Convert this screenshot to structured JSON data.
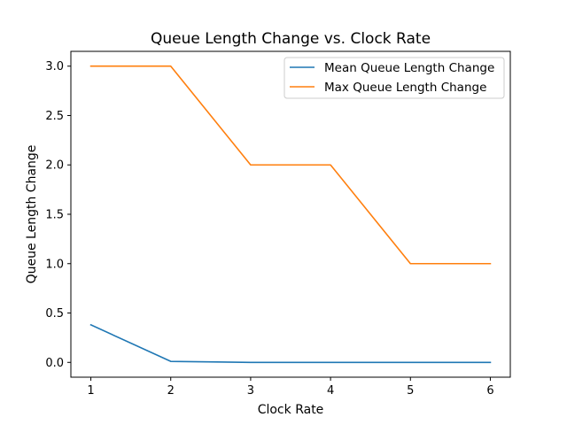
{
  "chart_data": {
    "type": "line",
    "title": "Queue Length Change vs. Clock Rate",
    "xlabel": "Clock Rate",
    "ylabel": "Queue Length Change",
    "x": [
      1,
      2,
      3,
      4,
      5,
      6
    ],
    "xlim": [
      0.75,
      6.25
    ],
    "ylim": [
      -0.15,
      3.15
    ],
    "xticks": [
      1,
      2,
      3,
      4,
      5,
      6
    ],
    "yticks": [
      0.0,
      0.5,
      1.0,
      1.5,
      2.0,
      2.5,
      3.0
    ],
    "ytick_labels": [
      "0.0",
      "0.5",
      "1.0",
      "1.5",
      "2.0",
      "2.5",
      "3.0"
    ],
    "grid": false,
    "legend_position": "top-right",
    "series": [
      {
        "name": "Mean Queue Length Change",
        "values": [
          0.38,
          0.01,
          0.0,
          0.0,
          0.0,
          0.0
        ],
        "color": "#1f77b4"
      },
      {
        "name": "Max Queue Length Change",
        "values": [
          3.0,
          3.0,
          2.0,
          2.0,
          1.0,
          1.0
        ],
        "color": "#ff7f0e"
      }
    ]
  }
}
